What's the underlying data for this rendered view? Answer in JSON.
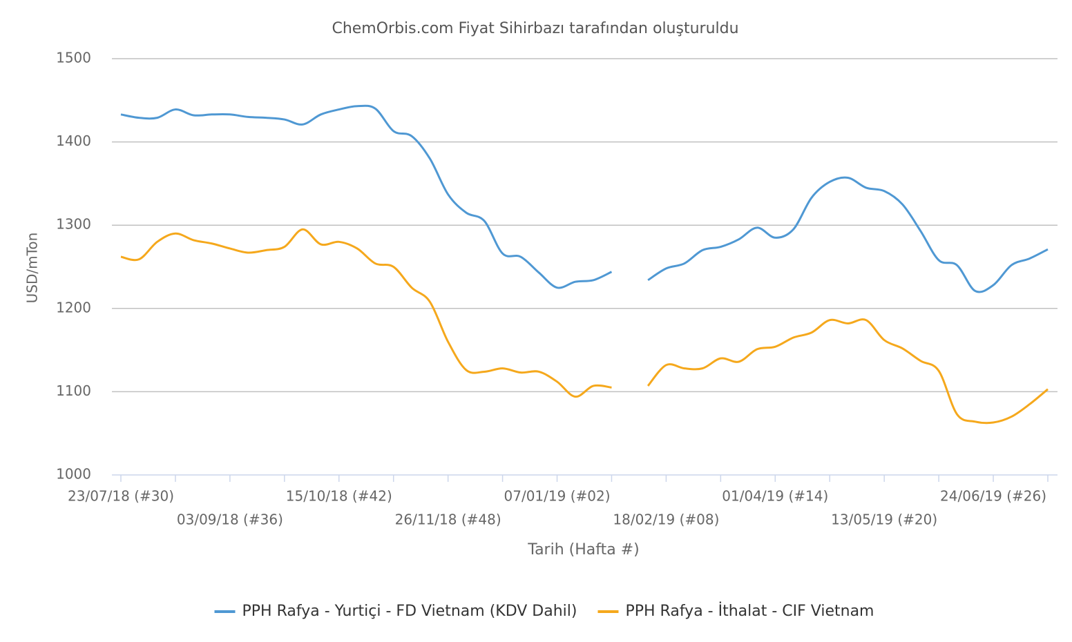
{
  "chart_data": {
    "type": "line",
    "title": "ChemOrbis.com Fiyat Sihirbazı tarafından oluşturuldu",
    "x_label": "Tarih (Hafta #)",
    "y_label": "USD/mTon",
    "categories": [
      "23/07/18 (#30)",
      null,
      null,
      null,
      null,
      null,
      "03/09/18 (#36)",
      null,
      null,
      null,
      null,
      null,
      "15/10/18 (#42)",
      null,
      null,
      null,
      null,
      null,
      "26/11/18 (#48)",
      null,
      null,
      null,
      null,
      null,
      "07/01/19 (#02)",
      null,
      null,
      null,
      null,
      null,
      "18/02/19 (#08)",
      null,
      null,
      null,
      null,
      null,
      "01/04/19 (#14)",
      null,
      null,
      null,
      null,
      null,
      "13/05/19 (#20)",
      null,
      null,
      null,
      null,
      null,
      "24/06/19 (#26)",
      null,
      null,
      null
    ],
    "series": [
      {
        "name": "PPH Rafya - Yurtiçi  - FD Vietnam (KDV Dahil)",
        "color": "#4f98d3",
        "values": [
          1433,
          1429,
          1429,
          1439,
          1432,
          1433,
          1433,
          1430,
          1429,
          1427,
          1421,
          1433,
          1439,
          1443,
          1440,
          1413,
          1407,
          1380,
          1337,
          1315,
          1305,
          1266,
          1262,
          1243,
          1225,
          1232,
          1234,
          1244,
          null,
          1234,
          1248,
          1254,
          1270,
          1274,
          1283,
          1297,
          1285,
          1295,
          1333,
          1352,
          1357,
          1345,
          1341,
          1325,
          1293,
          1258,
          1252,
          1221,
          1228,
          1252,
          1260,
          1271
        ]
      },
      {
        "name": "PPH Rafya - İthalat - CIF Vietnam",
        "color": "#f5a81c",
        "values": [
          1262,
          1259,
          1280,
          1290,
          1282,
          1278,
          1272,
          1267,
          1270,
          1274,
          1295,
          1277,
          1280,
          1272,
          1254,
          1250,
          1225,
          1208,
          1160,
          1126,
          1124,
          1128,
          1123,
          1124,
          1112,
          1094,
          1107,
          1105,
          null,
          1107,
          1132,
          1128,
          1128,
          1140,
          1136,
          1151,
          1154,
          1165,
          1171,
          1186,
          1182,
          1186,
          1162,
          1152,
          1137,
          1125,
          1073,
          1064,
          1063,
          1070,
          1085,
          1103
        ]
      }
    ],
    "ylim": [
      1000,
      1500
    ],
    "yticks": [
      1000,
      1100,
      1200,
      1300,
      1400,
      1500
    ],
    "grid": true
  }
}
